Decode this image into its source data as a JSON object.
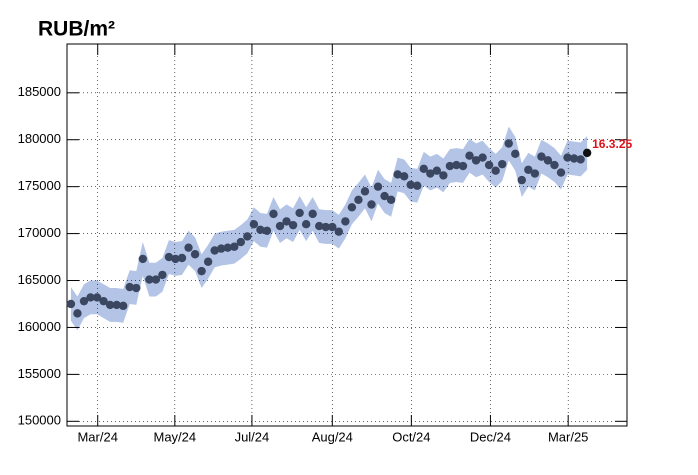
{
  "chart_data": {
    "type": "scatter",
    "title": "RUB/m²",
    "categories": [
      null,
      null,
      null,
      null,
      null,
      null,
      null,
      null,
      null,
      null,
      null,
      null,
      null,
      null,
      null,
      null,
      null,
      null,
      null,
      null,
      null,
      null,
      null,
      null,
      null,
      null,
      null,
      null,
      null,
      null,
      null,
      null,
      null,
      null,
      null,
      null,
      null,
      null,
      null,
      null,
      null,
      null,
      null,
      null,
      null,
      null,
      null,
      null,
      null,
      null,
      null,
      null,
      null,
      null,
      null,
      null,
      null,
      null,
      null,
      null,
      null,
      null,
      null,
      null,
      null,
      null,
      null,
      null,
      null,
      null,
      null,
      null,
      null,
      null,
      null,
      null,
      null,
      null,
      null,
      null
    ],
    "values": [
      162500,
      161500,
      162800,
      163200,
      163200,
      162800,
      162400,
      162400,
      162300,
      164300,
      164200,
      167300,
      165100,
      165100,
      165600,
      167500,
      167300,
      167400,
      168500,
      167800,
      166000,
      167000,
      168200,
      168400,
      168500,
      168600,
      169100,
      169700,
      171000,
      170400,
      170300,
      172100,
      170800,
      171300,
      170900,
      172200,
      171000,
      172100,
      170800,
      170700,
      170700,
      170200,
      171300,
      172800,
      173600,
      174500,
      173100,
      175000,
      174000,
      173600,
      176300,
      176100,
      175200,
      175100,
      176900,
      176400,
      176700,
      176200,
      177200,
      177300,
      177200,
      178300,
      177800,
      178100,
      177300,
      176700,
      177400,
      179600,
      178500,
      175700,
      176800,
      176400,
      178200,
      177800,
      177300,
      176500,
      178100,
      178000,
      177900,
      178600
    ],
    "band_halfwidth": 1800,
    "color": "#3b4660",
    "band_color": "#b3c4e6",
    "annotation": "16.3.25",
    "annotation_color": "#e0101a",
    "xlim": [
      -0.6,
      85.1
    ],
    "xticks": [
      {
        "value": 4.1,
        "label": "Mar/24"
      },
      {
        "value": 15.9,
        "label": "May/24"
      },
      {
        "value": 27.7,
        "label": "Jul/24"
      },
      {
        "value": 40.0,
        "label": "Aug/24"
      },
      {
        "value": 52.1,
        "label": "Oct/24"
      },
      {
        "value": 64.2,
        "label": "Dec/24"
      },
      {
        "value": 76.1,
        "label": "Mar/25"
      }
    ],
    "ylim": [
      149500,
      190200
    ],
    "yticks": [
      150000,
      155000,
      160000,
      165000,
      170000,
      175000,
      180000,
      185000
    ],
    "grid": true
  }
}
